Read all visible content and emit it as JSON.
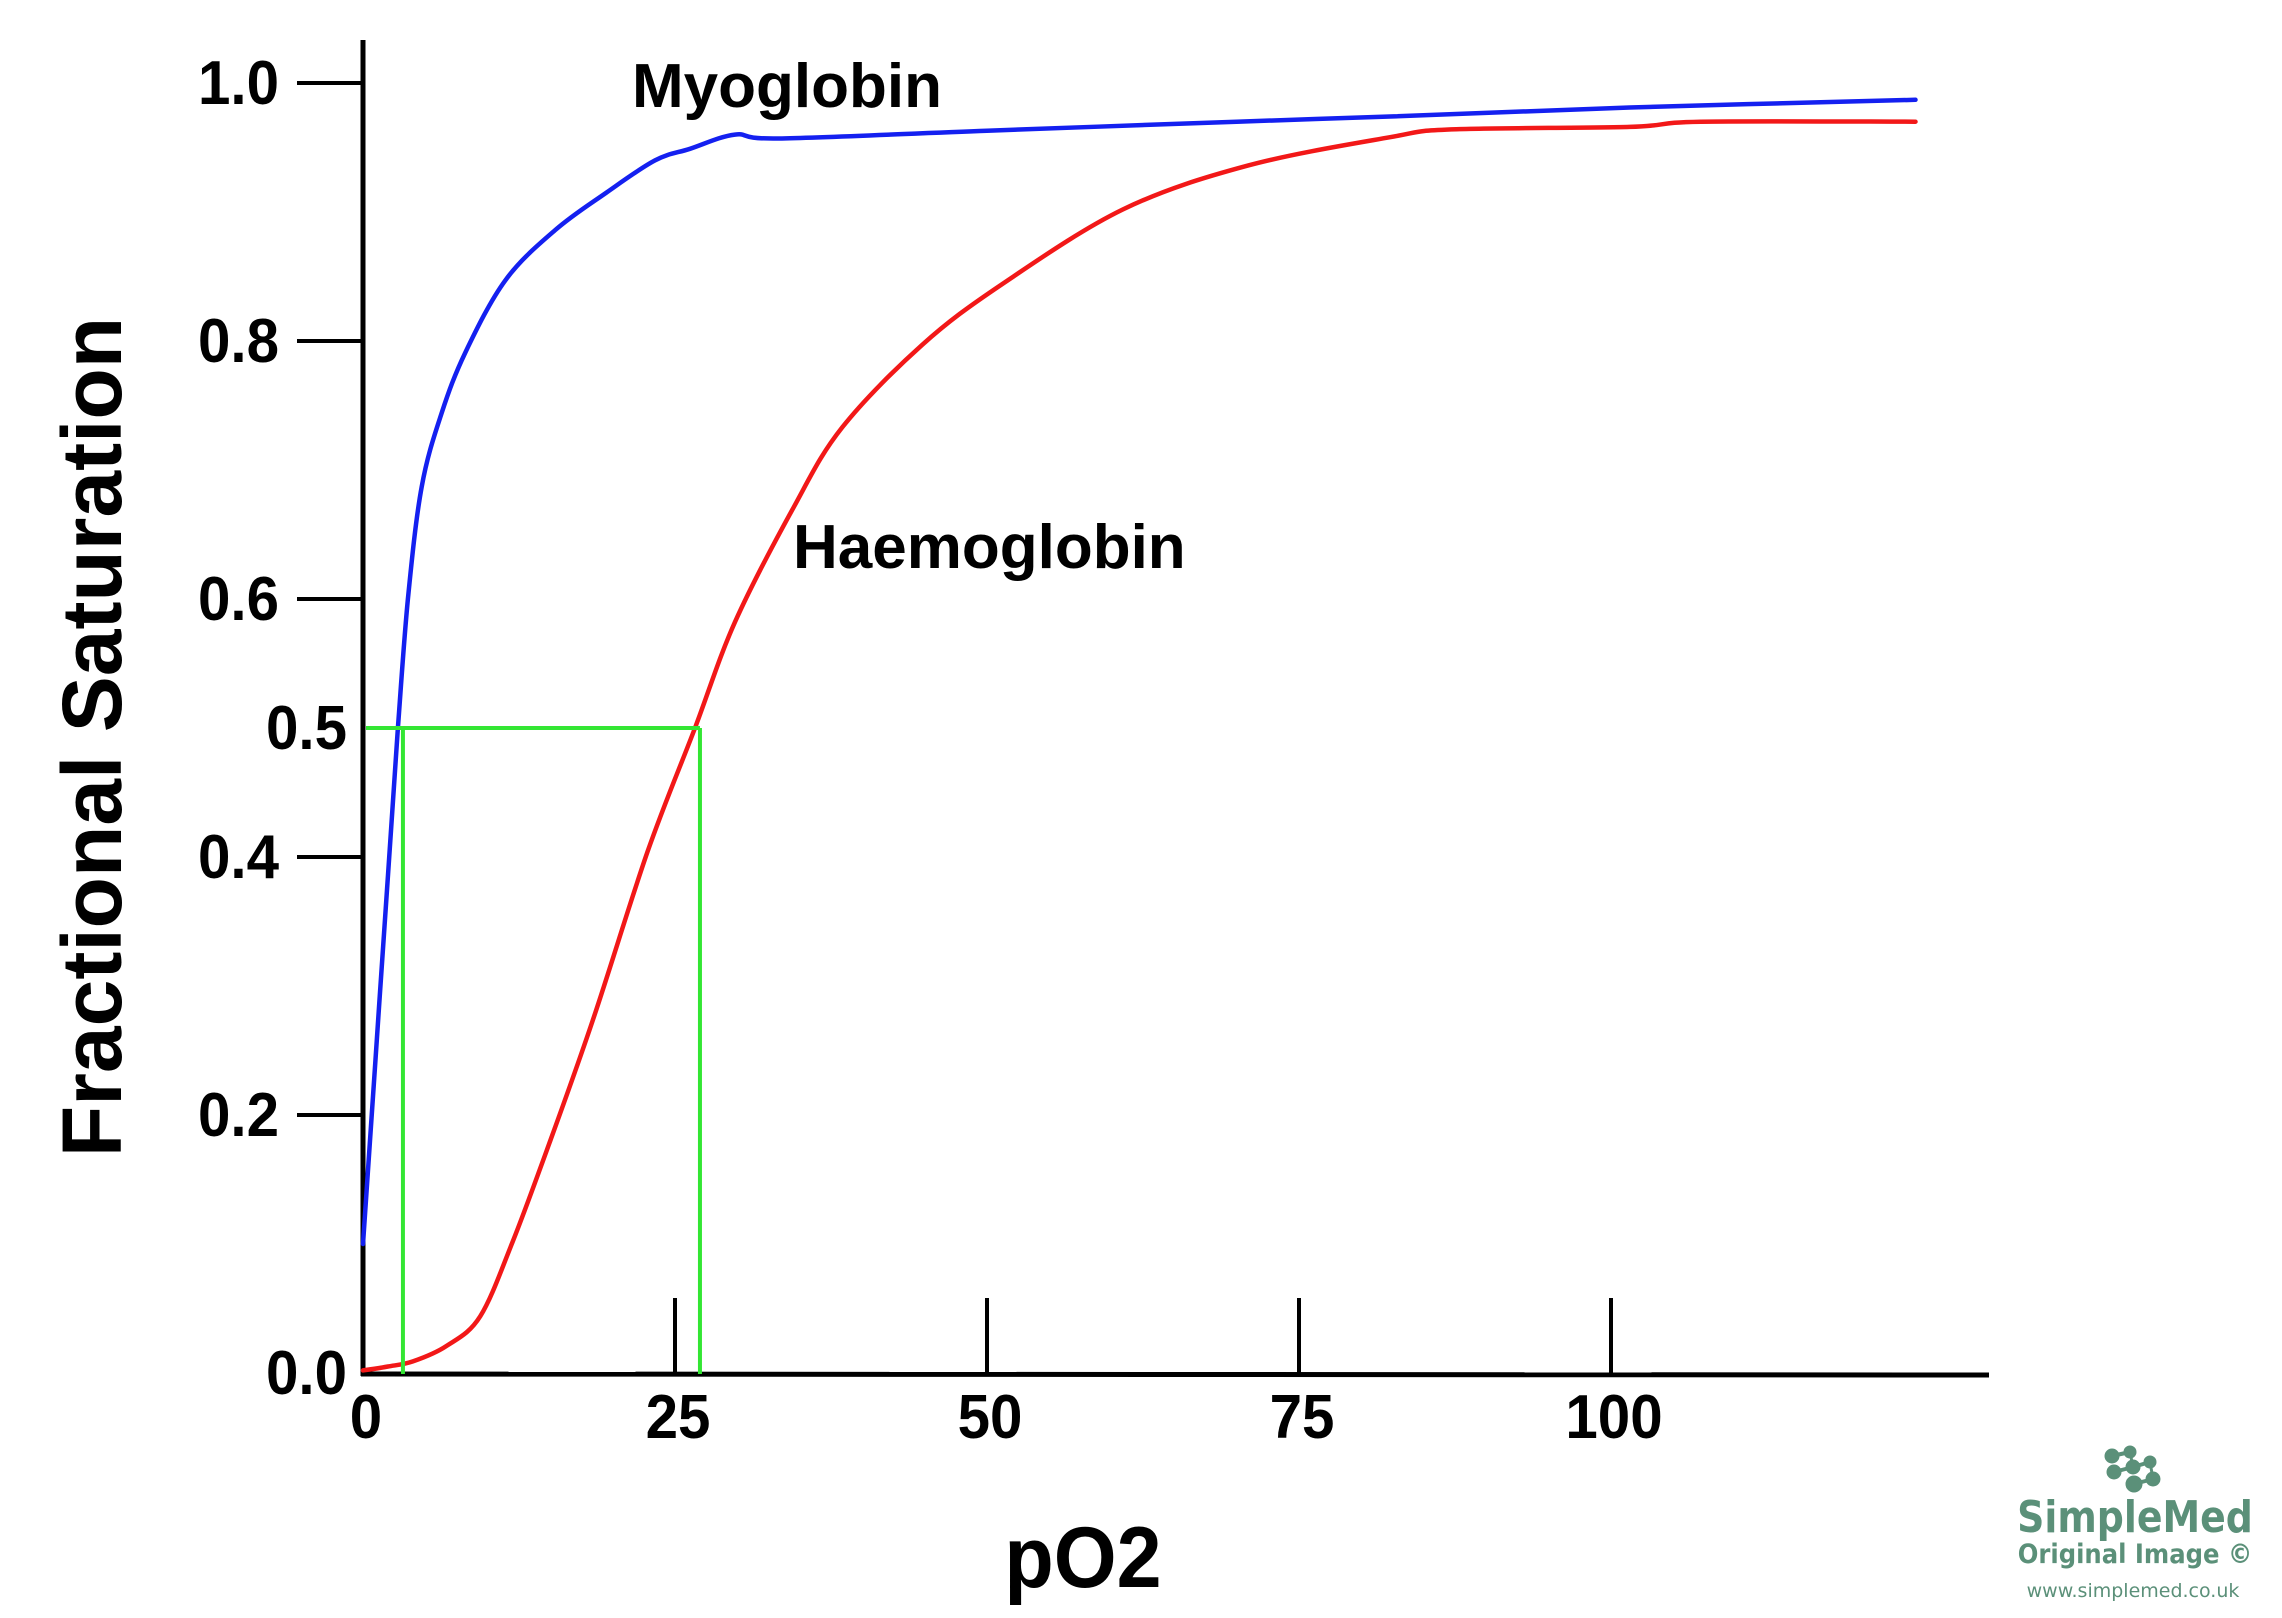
{
  "chart_data": {
    "type": "line",
    "title": "",
    "xlabel": "pO2",
    "ylabel": "Fractional Saturation",
    "xlim": [
      0,
      130
    ],
    "ylim": [
      0,
      1.03
    ],
    "grid": false,
    "x_axis": {
      "ticks": [
        0,
        25,
        50,
        75,
        100
      ],
      "tick_labels": [
        "0",
        "25",
        "50",
        "75",
        "100"
      ],
      "tick_marks": [
        25,
        50,
        75,
        100
      ]
    },
    "y_axis": {
      "ticks": [
        0.0,
        0.2,
        0.4,
        0.5,
        0.6,
        0.8,
        1.0
      ],
      "tick_labels": [
        "0.0",
        "0.2",
        "0.4",
        "0.5",
        "0.6",
        "0.8",
        "1.0"
      ],
      "tick_marks": [
        0.2,
        0.4,
        0.6,
        0.8,
        1.0
      ]
    },
    "series": [
      {
        "name": "Myoglobin",
        "color": "#1420f0",
        "x": [
          0,
          1,
          2,
          2.8,
          3.6,
          4.7,
          6.3,
          8.2,
          11.4,
          15.4,
          19.5,
          23.4,
          26.2,
          29.8,
          33.3,
          50,
          70,
          82.3,
          101.5,
          124.4
        ],
        "y": [
          0.1,
          0.243,
          0.386,
          0.5,
          0.6,
          0.687,
          0.744,
          0.791,
          0.847,
          0.886,
          0.915,
          0.94,
          0.949,
          0.96,
          0.957,
          0.963,
          0.97,
          0.974,
          0.981,
          0.987
        ]
      },
      {
        "name": "Haemoglobin",
        "color": "#f21818",
        "x": [
          0,
          2,
          4,
          6.7,
          9.4,
          12.0,
          14.7,
          18.4,
          22.8,
          26.6,
          29.8,
          34.5,
          38.4,
          44.8,
          51.2,
          60.9,
          70.9,
          82.3,
          87.2,
          101.5,
          107.2,
          124.4
        ],
        "y": [
          0.002,
          0.005,
          0.009,
          0.021,
          0.044,
          0.102,
          0.172,
          0.273,
          0.404,
          0.5,
          0.582,
          0.671,
          0.733,
          0.797,
          0.844,
          0.902,
          0.936,
          0.958,
          0.964,
          0.966,
          0.97,
          0.97
        ]
      }
    ],
    "reference_lines": {
      "color": "#33e633",
      "y_level": 0.5,
      "p50_values": [
        3.2,
        27.0
      ]
    }
  },
  "watermark": {
    "brand": "SimpleMed",
    "subtitle": "Original Image ©",
    "url": "www.simplemed.co.uk",
    "color": "#5b9079"
  }
}
